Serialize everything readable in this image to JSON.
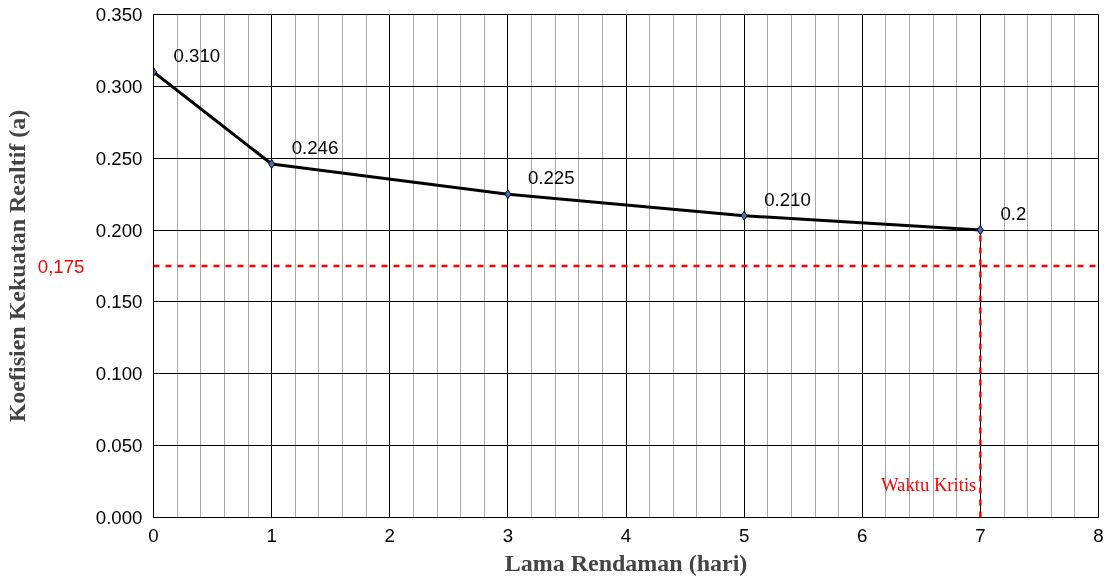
{
  "chart_data": {
    "type": "line",
    "xlabel": "Lama Rendaman (hari)",
    "ylabel": "Koefisien Kekuatan Realtif (a)",
    "x": [
      0,
      1,
      3,
      5,
      7
    ],
    "series": [
      {
        "color": "#000000",
        "values": [
          0.31,
          0.246,
          0.225,
          0.21,
          0.2
        ],
        "value_labels": [
          "0.310",
          "0.246",
          "0.225",
          "0.210",
          "0.2"
        ]
      }
    ],
    "xlim": [
      0,
      8
    ],
    "xticks": [
      0,
      1,
      2,
      3,
      4,
      5,
      6,
      7,
      8
    ],
    "ylim": [
      0,
      0.35
    ],
    "yticks": [
      {
        "value": 0,
        "label": "0.000"
      },
      {
        "value": 0.05,
        "label": "0.050"
      },
      {
        "value": 0.1,
        "label": "0.100"
      },
      {
        "value": 0.15,
        "label": "0.150"
      },
      {
        "value": 0.2,
        "label": "0.200"
      },
      {
        "value": 0.25,
        "label": "0.250"
      },
      {
        "value": 0.3,
        "label": "0.300"
      },
      {
        "value": 0.35,
        "label": "0.350"
      }
    ],
    "grid": true,
    "marker": "diamond",
    "line_style": "solid",
    "ref_lines": [
      {
        "axis": "y",
        "value": 0.175,
        "label": "0,175",
        "color": "#ff0000",
        "line_style": "dashed"
      },
      {
        "axis": "x",
        "value": 7,
        "label": "Waktu Kritis",
        "color": "#ff0000",
        "line_style": "dashed"
      }
    ]
  }
}
